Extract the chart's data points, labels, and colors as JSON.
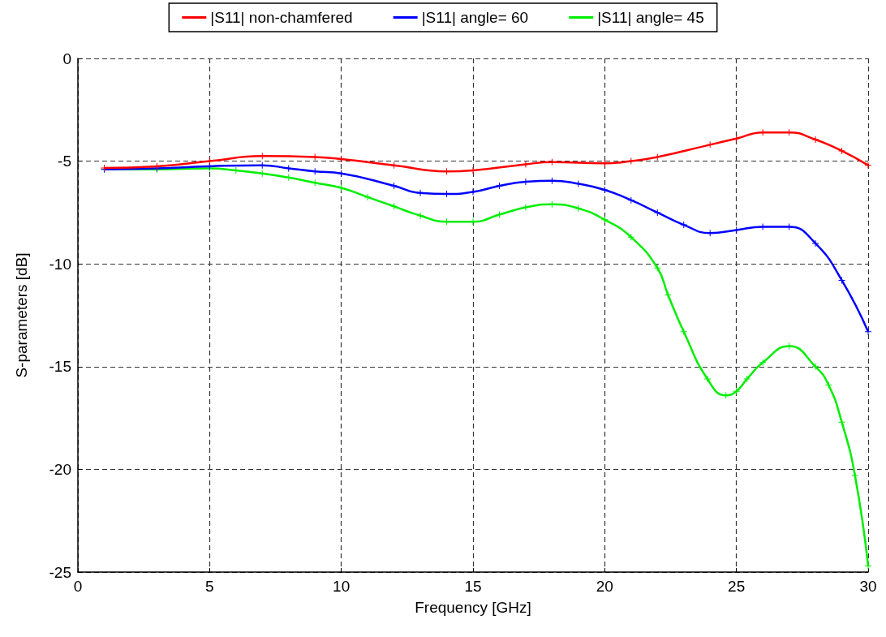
{
  "chart_data": {
    "type": "line",
    "xlabel": "Frequency [GHz]",
    "ylabel": "S-parameters [dB]",
    "xlim": [
      0,
      30
    ],
    "xticks": [
      0,
      5,
      10,
      15,
      20,
      25,
      30
    ],
    "ylim": [
      -25,
      0
    ],
    "yticks": [
      -25,
      -20,
      -15,
      -10,
      -5,
      0
    ],
    "grid": true,
    "legend": "top",
    "marker": "cross",
    "line_style": "solid",
    "series": [
      {
        "name": "|S11| non-chamfered",
        "color": "#ff0000",
        "x": [
          1,
          3,
          5,
          7,
          9,
          10,
          12,
          14,
          15,
          17,
          18,
          20,
          21,
          22,
          24,
          25,
          26,
          27,
          28,
          29,
          30
        ],
        "values": [
          -5.33,
          -5.25,
          -5.0,
          -4.75,
          -4.8,
          -4.9,
          -5.2,
          -5.5,
          -5.45,
          -5.15,
          -5.05,
          -5.1,
          -5.0,
          -4.8,
          -4.2,
          -3.9,
          -3.6,
          -3.6,
          -3.95,
          -4.5,
          -5.2
        ]
      },
      {
        "name": "|S11| angle= 60",
        "color": "#0000ff",
        "x": [
          1,
          3,
          5,
          7,
          8,
          9,
          10,
          12,
          13,
          14,
          15,
          16,
          17,
          18,
          19,
          20,
          21,
          22,
          23,
          24,
          25,
          26,
          27,
          28,
          29,
          30
        ],
        "values": [
          -5.4,
          -5.35,
          -5.25,
          -5.2,
          -5.35,
          -5.5,
          -5.6,
          -6.2,
          -6.55,
          -6.6,
          -6.5,
          -6.2,
          -6.0,
          -5.95,
          -6.1,
          -6.4,
          -6.9,
          -7.5,
          -8.1,
          -8.5,
          -8.35,
          -8.2,
          -8.2,
          -9.0,
          -10.8,
          -13.3
        ]
      },
      {
        "name": "|S11| angle= 45",
        "color": "#00ee00",
        "x": [
          1,
          3,
          5,
          6,
          7,
          8,
          9,
          10,
          11,
          12,
          13,
          14,
          15,
          16,
          17,
          18,
          19,
          20,
          21,
          22,
          22.4,
          23,
          23.9,
          24.6,
          25,
          25.4,
          26,
          27,
          28,
          28.5,
          29,
          29.5,
          30
        ],
        "values": [
          -5.4,
          -5.4,
          -5.35,
          -5.45,
          -5.6,
          -5.8,
          -6.05,
          -6.3,
          -6.75,
          -7.2,
          -7.65,
          -7.95,
          -7.95,
          -7.6,
          -7.25,
          -7.1,
          -7.3,
          -7.85,
          -8.7,
          -10.2,
          -11.5,
          -13.3,
          -15.6,
          -16.4,
          -16.2,
          -15.6,
          -14.8,
          -14.0,
          -15.0,
          -15.9,
          -17.7,
          -20.3,
          -24.7
        ]
      }
    ]
  }
}
